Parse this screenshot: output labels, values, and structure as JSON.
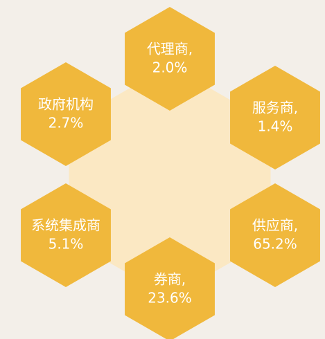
{
  "nodes": [
    {
      "label": "代理商,",
      "value": "2.0%"
    },
    {
      "label": "政府机构",
      "value": "2.7%"
    },
    {
      "label": "服务商,",
      "value": "1.4%"
    },
    {
      "label": "系统集成商",
      "value": "5.1%"
    },
    {
      "label": "供应商,",
      "value": "65.2%"
    },
    {
      "label": "券商,",
      "value": "23.6%"
    }
  ]
}
